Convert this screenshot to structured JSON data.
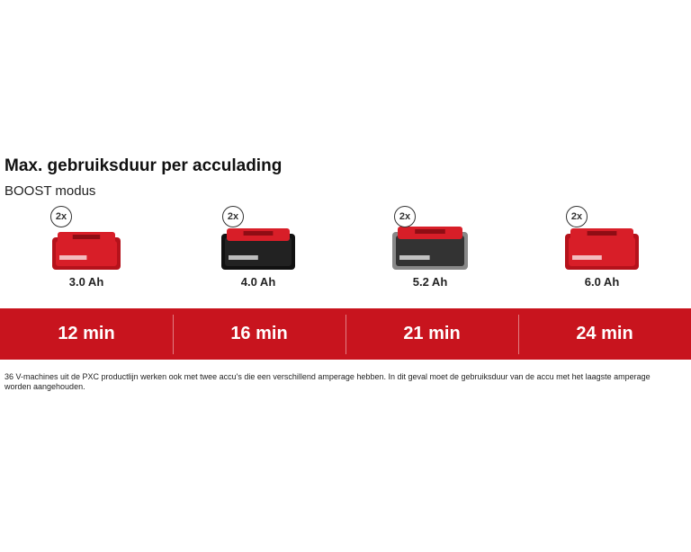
{
  "header": {
    "title": "Max. gebruiksduur per acculading",
    "subtitle": "BOOST modus"
  },
  "batteries": [
    {
      "badge": "2x",
      "capacity": "3.0 Ah",
      "runtime": "12 min"
    },
    {
      "badge": "2x",
      "capacity": "4.0 Ah",
      "runtime": "16 min"
    },
    {
      "badge": "2x",
      "capacity": "5.2 Ah",
      "runtime": "21 min"
    },
    {
      "badge": "2x",
      "capacity": "6.0 Ah",
      "runtime": "24 min"
    }
  ],
  "footnote": "36 V-machines uit de PXC productlijn werken ook met twee accu's die een verschillend amperage hebben. In dit geval moet de gebruiksduur van de accu met het laagste amperage worden aangehouden."
}
